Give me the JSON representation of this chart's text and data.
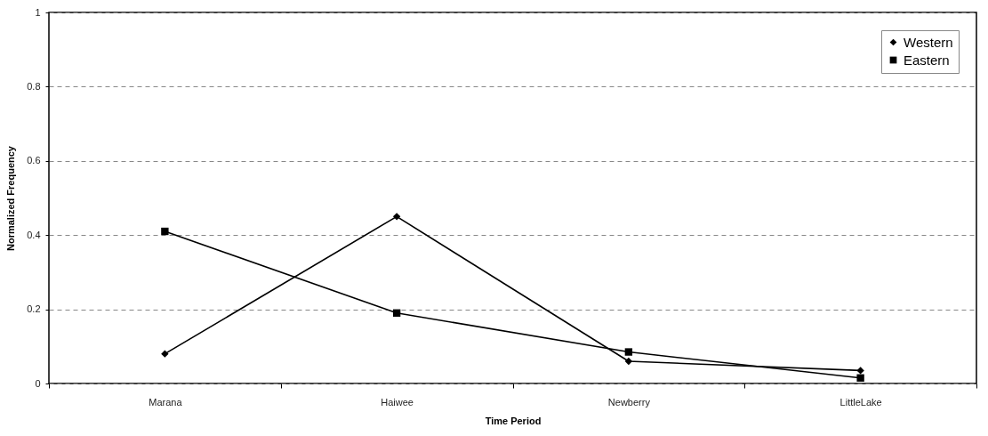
{
  "chart_data": {
    "type": "line",
    "xlabel": "Time Period",
    "ylabel": "Normalized Frequency",
    "categories": [
      "Marana",
      "Haiwee",
      "Newberry",
      "LittleLake"
    ],
    "series": [
      {
        "name": "Western",
        "color": "#000000",
        "marker": "diamond",
        "values": [
          0.08,
          0.45,
          0.06,
          0.035
        ]
      },
      {
        "name": "Eastern",
        "color": "#000000",
        "marker": "square",
        "values": [
          0.41,
          0.19,
          0.085,
          0.015
        ]
      }
    ],
    "ylim": [
      0,
      1
    ],
    "yticks": [
      0,
      0.2,
      0.4,
      0.6,
      0.8,
      1
    ],
    "grid": "y",
    "legend": "top right",
    "line_style": "solid"
  }
}
